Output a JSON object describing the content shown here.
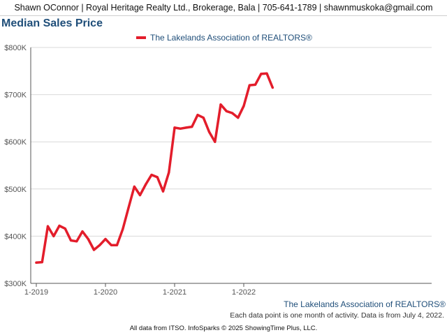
{
  "header": {
    "contact": "Shawn OConnor | Royal Heritage Realty Ltd., Brokerage, Bala | 705-641-1789 | shawnmuskoka@gmail.com"
  },
  "chart_data": {
    "type": "line",
    "title": "Median Sales Price",
    "xlabel": "",
    "ylabel": "",
    "ylim": [
      300000,
      800000
    ],
    "yticks": [
      300000,
      400000,
      500000,
      600000,
      700000,
      800000
    ],
    "ytick_labels": [
      "$300K",
      "$400K",
      "$500K",
      "$600K",
      "$700K",
      "$800K"
    ],
    "xtick_labels": [
      "1-2019",
      "1-2020",
      "1-2021",
      "1-2022"
    ],
    "x": [
      "2019-01",
      "2019-02",
      "2019-03",
      "2019-04",
      "2019-05",
      "2019-06",
      "2019-07",
      "2019-08",
      "2019-09",
      "2019-10",
      "2019-11",
      "2019-12",
      "2020-01",
      "2020-02",
      "2020-03",
      "2020-04",
      "2020-05",
      "2020-06",
      "2020-07",
      "2020-08",
      "2020-09",
      "2020-10",
      "2020-11",
      "2020-12",
      "2021-01",
      "2021-02",
      "2021-03",
      "2021-04",
      "2021-05",
      "2021-06",
      "2021-07",
      "2021-08",
      "2021-09",
      "2021-10",
      "2021-11",
      "2021-12",
      "2022-01",
      "2022-02",
      "2022-03",
      "2022-04",
      "2022-05",
      "2022-06"
    ],
    "series": [
      {
        "name": "The Lakelands Association of REALTORS®",
        "color": "#e31d2b",
        "values": [
          344000,
          345000,
          421000,
          400000,
          422000,
          416000,
          391000,
          389000,
          410000,
          394000,
          371000,
          381000,
          394000,
          381000,
          381000,
          415000,
          460000,
          505000,
          487000,
          510000,
          530000,
          525000,
          495000,
          535000,
          630000,
          628000,
          630000,
          632000,
          657000,
          651000,
          621000,
          600000,
          679000,
          665000,
          661000,
          651000,
          676000,
          720000,
          721000,
          744000,
          745000,
          715000
        ]
      }
    ],
    "grid": true,
    "legend": "top"
  },
  "footer": {
    "brand": "The Lakelands Association of REALTORS®",
    "note": "Each data point is one month of activity. Data is from July 4, 2022.",
    "credit": "All data from ITSO. InfoSparks © 2025 ShowingTime Plus, LLC."
  }
}
